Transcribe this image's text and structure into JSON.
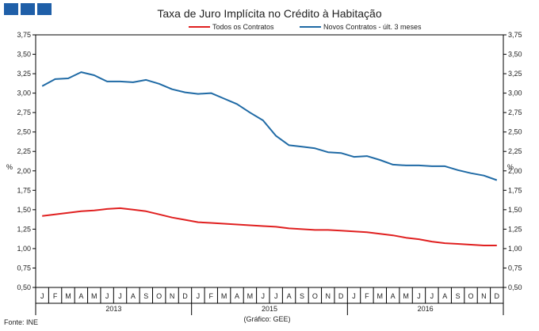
{
  "chart_data": {
    "type": "line",
    "title": "Taxa de Juro Implícita no Crédito à Habitação",
    "ylabel": "%",
    "ylim": [
      0.5,
      3.75
    ],
    "yticks": [
      "0,50",
      "0,75",
      "1,00",
      "1,25",
      "1,50",
      "1,75",
      "2,00",
      "2,25",
      "2,50",
      "2,75",
      "3,00",
      "3,25",
      "3,50",
      "3,75"
    ],
    "ytick_values": [
      0.5,
      0.75,
      1.0,
      1.25,
      1.5,
      1.75,
      2.0,
      2.25,
      2.5,
      2.75,
      3.0,
      3.25,
      3.5,
      3.75
    ],
    "months": [
      "J",
      "F",
      "M",
      "A",
      "M",
      "J",
      "J",
      "A",
      "S",
      "O",
      "N",
      "D",
      "J",
      "F",
      "M",
      "A",
      "M",
      "J",
      "J",
      "A",
      "S",
      "O",
      "N",
      "D",
      "J",
      "F",
      "M",
      "A",
      "M",
      "J",
      "J",
      "A",
      "S",
      "O",
      "N",
      "D"
    ],
    "years": [
      "2013",
      "2015",
      "2016"
    ],
    "grid": false,
    "legend_position": "top-center",
    "series": [
      {
        "name": "Todos os Contratos",
        "color": "#e02020",
        "values": [
          1.42,
          1.44,
          1.46,
          1.48,
          1.49,
          1.51,
          1.52,
          1.5,
          1.48,
          1.44,
          1.4,
          1.37,
          1.34,
          1.33,
          1.32,
          1.31,
          1.3,
          1.29,
          1.28,
          1.26,
          1.25,
          1.24,
          1.24,
          1.23,
          1.22,
          1.21,
          1.19,
          1.17,
          1.14,
          1.12,
          1.09,
          1.07,
          1.06,
          1.05,
          1.04,
          1.04
        ]
      },
      {
        "name": "Novos Contratos - últ. 3 meses",
        "color": "#1f6aa5",
        "values": [
          3.09,
          3.18,
          3.19,
          3.27,
          3.23,
          3.15,
          3.15,
          3.14,
          3.17,
          3.12,
          3.05,
          3.01,
          2.99,
          3.0,
          2.93,
          2.86,
          2.75,
          2.65,
          2.45,
          2.33,
          2.31,
          2.29,
          2.24,
          2.23,
          2.18,
          2.19,
          2.14,
          2.08,
          2.07,
          2.07,
          2.06,
          2.06,
          2.01,
          1.97,
          1.94,
          1.88
        ]
      }
    ]
  },
  "footer": {
    "source": "Fonte: INE",
    "credit": "(Gráfico: GEE)"
  }
}
